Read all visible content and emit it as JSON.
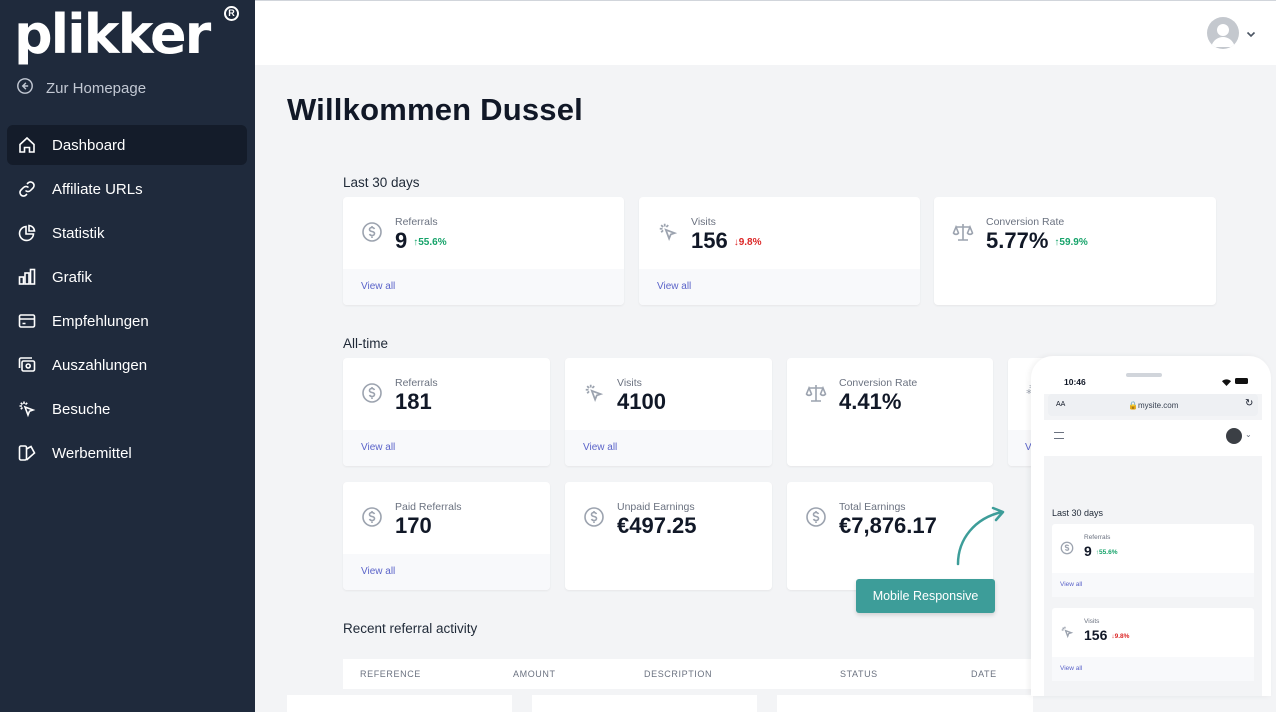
{
  "brand": {
    "logo": "plikker",
    "reg": "R"
  },
  "sidebar": {
    "home_link": "Zur Homepage",
    "items": [
      {
        "label": "Dashboard",
        "icon": "home-icon",
        "active": true
      },
      {
        "label": "Affiliate URLs",
        "icon": "link-icon"
      },
      {
        "label": "Statistik",
        "icon": "pie-chart-icon"
      },
      {
        "label": "Grafik",
        "icon": "bar-chart-icon"
      },
      {
        "label": "Empfehlungen",
        "icon": "credit-card-icon"
      },
      {
        "label": "Auszahlungen",
        "icon": "cash-icon"
      },
      {
        "label": "Besuche",
        "icon": "cursor-click-icon"
      },
      {
        "label": "Werbemittel",
        "icon": "collection-icon"
      }
    ]
  },
  "page": {
    "title": "Willkommen Dussel"
  },
  "last30": {
    "label": "Last 30 days",
    "referrals": {
      "label": "Referrals",
      "value": "9",
      "delta": "55.6%",
      "link": "View all"
    },
    "visits": {
      "label": "Visits",
      "value": "156",
      "delta": "9.8%",
      "link": "View all"
    },
    "conversion": {
      "label": "Conversion Rate",
      "value": "5.77%",
      "delta": "59.9%"
    }
  },
  "alltime": {
    "label": "All-time",
    "referrals": {
      "label": "Referrals",
      "value": "181",
      "link": "View all"
    },
    "visits": {
      "label": "Visits",
      "value": "4100",
      "link": "View all"
    },
    "conversion": {
      "label": "Conversion Rate",
      "value": "4.41%"
    },
    "paid": {
      "label": "Paid Referrals",
      "value": "170",
      "link": "View all"
    },
    "unpaid": {
      "label": "Unpaid Earnings",
      "value": "€497.25"
    },
    "total": {
      "label": "Total Earnings",
      "value": "€7,876.17"
    },
    "partial_link": "V"
  },
  "recent": {
    "label": "Recent referral activity",
    "columns": [
      "REFERENCE",
      "AMOUNT",
      "DESCRIPTION",
      "STATUS",
      "DATE"
    ]
  },
  "mobile": {
    "button": "Mobile Responsive",
    "time": "10:46",
    "aa": "AA",
    "url": "mysite.com",
    "section": "Last 30 days",
    "referrals": {
      "label": "Referrals",
      "value": "9",
      "delta": "55.6%",
      "link": "View all"
    },
    "visits": {
      "label": "Visits",
      "value": "156",
      "delta": "9.8%",
      "link": "View all"
    }
  },
  "colors": {
    "sidebar": "#1f2a3c",
    "accent": "#3d9d99",
    "link": "#5b64c9",
    "up": "#16a36a",
    "down": "#dc2626"
  }
}
